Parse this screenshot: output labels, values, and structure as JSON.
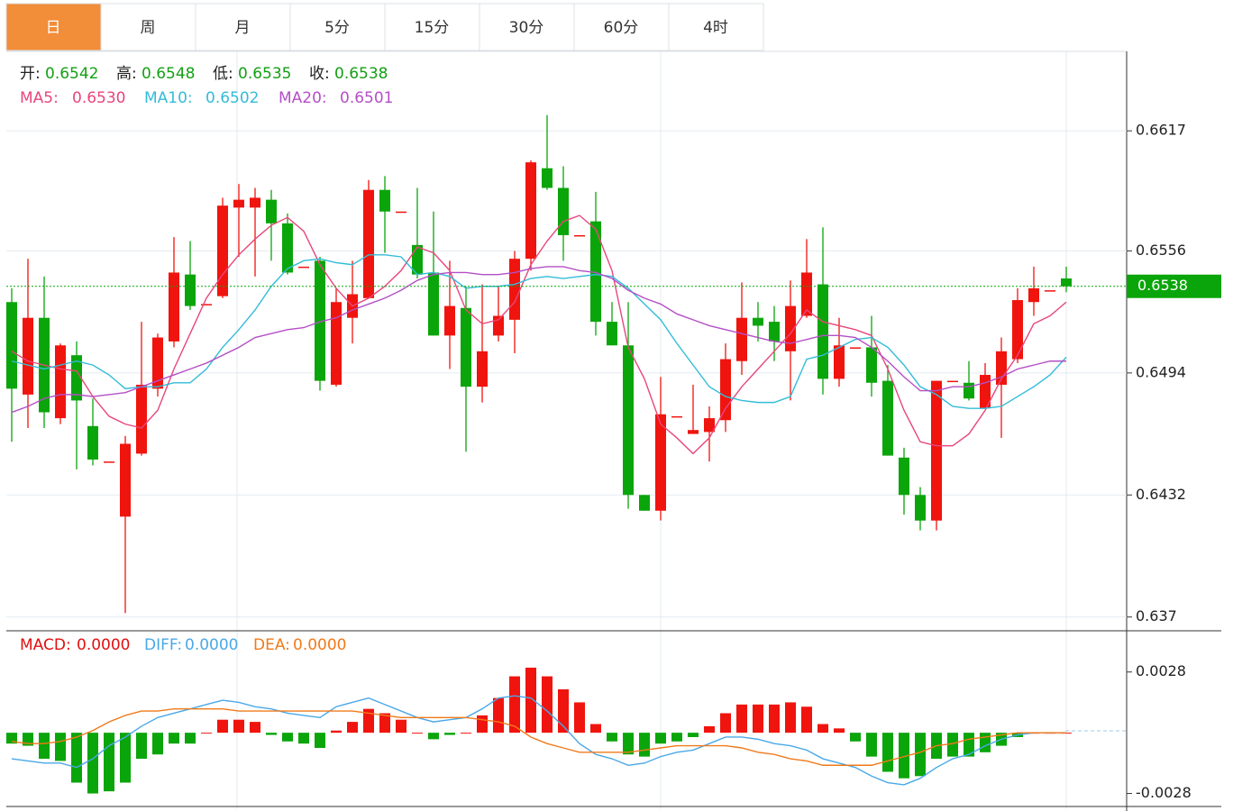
{
  "tabs": [
    "日",
    "周",
    "月",
    "5分",
    "15分",
    "30分",
    "60分",
    "4时"
  ],
  "active_tab": 0,
  "chart_data": [
    {
      "type": "candlestick",
      "legend": [
        {
          "label": "开:",
          "value": "0.6542"
        },
        {
          "label": "高:",
          "value": "0.6548"
        },
        {
          "label": "低:",
          "value": "0.6535"
        },
        {
          "label": "收:",
          "value": "0.6538"
        }
      ],
      "up_color": "#f0140e",
      "down_color": "#0aa50a",
      "open": [
        0.653,
        0.6483,
        0.6522,
        0.6471,
        0.6503,
        0.6467,
        0.6449,
        0.6421,
        0.6453,
        0.6486,
        0.651,
        0.6544,
        0.6529,
        0.6533,
        0.6578,
        0.6578,
        0.6582,
        0.657,
        0.6548,
        0.6551,
        0.6488,
        0.6522,
        0.6532,
        0.6587,
        0.6576,
        0.6559,
        0.6545,
        0.6513,
        0.6527,
        0.6487,
        0.6513,
        0.6521,
        0.6552,
        0.6598,
        0.6588,
        0.6564,
        0.6571,
        0.652,
        0.6508,
        0.6432,
        0.6424,
        0.6472,
        0.6463,
        0.6464,
        0.647,
        0.65,
        0.6522,
        0.652,
        0.6505,
        0.6523,
        0.6539,
        0.6491,
        0.6507,
        0.6507,
        0.649,
        0.6451,
        0.6432,
        0.6419,
        0.649,
        0.6489,
        0.6476,
        0.6488,
        0.6501,
        0.653,
        0.6536,
        0.6542
      ],
      "high": [
        0.6537,
        0.6552,
        0.6543,
        0.6509,
        0.651,
        0.6481,
        0.6449,
        0.6462,
        0.652,
        0.6514,
        0.6563,
        0.6561,
        0.6529,
        0.6583,
        0.659,
        0.6588,
        0.6587,
        0.6575,
        0.6548,
        0.6553,
        0.6537,
        0.6551,
        0.6592,
        0.6594,
        0.6576,
        0.6588,
        0.6576,
        0.6551,
        0.6538,
        0.6539,
        0.6538,
        0.6556,
        0.6602,
        0.6625,
        0.6599,
        0.6564,
        0.6586,
        0.653,
        0.653,
        0.6432,
        0.6492,
        0.6472,
        0.6488,
        0.6477,
        0.6509,
        0.654,
        0.653,
        0.6528,
        0.6541,
        0.6562,
        0.6568,
        0.6522,
        0.6507,
        0.6523,
        0.6498,
        0.6456,
        0.6436,
        0.649,
        0.649,
        0.65,
        0.6499,
        0.6512,
        0.6537,
        0.6548,
        0.6536,
        0.6548
      ],
      "low": [
        0.6459,
        0.6466,
        0.6466,
        0.6468,
        0.6445,
        0.6447,
        0.6449,
        0.6372,
        0.6452,
        0.6482,
        0.6507,
        0.6526,
        0.6529,
        0.6532,
        0.6553,
        0.6543,
        0.6551,
        0.6544,
        0.6548,
        0.6485,
        0.6487,
        0.6509,
        0.6532,
        0.6555,
        0.6576,
        0.6542,
        0.6513,
        0.6496,
        0.6454,
        0.6479,
        0.651,
        0.6504,
        0.6546,
        0.6587,
        0.6551,
        0.6564,
        0.6513,
        0.6508,
        0.6425,
        0.6424,
        0.6419,
        0.6472,
        0.6463,
        0.6449,
        0.6464,
        0.6493,
        0.651,
        0.65,
        0.648,
        0.6522,
        0.6483,
        0.6487,
        0.6507,
        0.6482,
        0.6452,
        0.6422,
        0.6414,
        0.6414,
        0.649,
        0.648,
        0.6476,
        0.6461,
        0.6499,
        0.6523,
        0.6536,
        0.6535
      ],
      "close": [
        0.6486,
        0.6522,
        0.6474,
        0.6508,
        0.648,
        0.645,
        0.6449,
        0.6458,
        0.6488,
        0.6512,
        0.6545,
        0.6528,
        0.6529,
        0.6579,
        0.6582,
        0.6583,
        0.657,
        0.6545,
        0.6548,
        0.649,
        0.653,
        0.6534,
        0.6587,
        0.6576,
        0.6576,
        0.6544,
        0.6513,
        0.6528,
        0.6487,
        0.6505,
        0.6523,
        0.6552,
        0.6601,
        0.6588,
        0.6564,
        0.6564,
        0.652,
        0.6508,
        0.6432,
        0.6424,
        0.6473,
        0.6472,
        0.6465,
        0.6471,
        0.6501,
        0.6522,
        0.6518,
        0.651,
        0.6528,
        0.6545,
        0.6491,
        0.6508,
        0.6507,
        0.6489,
        0.6452,
        0.6432,
        0.6419,
        0.649,
        0.649,
        0.6481,
        0.6493,
        0.6505,
        0.6531,
        0.6537,
        0.6536,
        0.6538
      ],
      "series": [
        {
          "name": "MA5:",
          "current": "0.6530",
          "color": "#e8467c",
          "values": [
            0.6505,
            0.65,
            0.6498,
            0.6496,
            0.6495,
            0.6482,
            0.6472,
            0.6468,
            0.6466,
            0.6475,
            0.6496,
            0.6514,
            0.6532,
            0.6544,
            0.6554,
            0.6562,
            0.6569,
            0.6573,
            0.6566,
            0.6549,
            0.6537,
            0.6528,
            0.6532,
            0.6538,
            0.6546,
            0.6558,
            0.6555,
            0.6546,
            0.6526,
            0.6519,
            0.6521,
            0.653,
            0.6549,
            0.6561,
            0.6571,
            0.6574,
            0.6567,
            0.6546,
            0.6507,
            0.6491,
            0.6468,
            0.6461,
            0.6453,
            0.6461,
            0.6476,
            0.6487,
            0.6496,
            0.6505,
            0.6514,
            0.6526,
            0.652,
            0.6518,
            0.6516,
            0.6513,
            0.6496,
            0.6475,
            0.6459,
            0.6457,
            0.6457,
            0.6463,
            0.6475,
            0.6491,
            0.6503,
            0.6519,
            0.6523,
            0.653
          ]
        },
        {
          "name": "MA10:",
          "current": "0.6502",
          "color": "#33bcd8",
          "values": [
            0.65,
            0.6498,
            0.6496,
            0.6498,
            0.65,
            0.6498,
            0.6493,
            0.6486,
            0.6487,
            0.6487,
            0.6489,
            0.6489,
            0.6496,
            0.6507,
            0.6516,
            0.6526,
            0.6538,
            0.6547,
            0.6551,
            0.6552,
            0.655,
            0.6549,
            0.6554,
            0.6554,
            0.6553,
            0.6544,
            0.6545,
            0.6543,
            0.6537,
            0.6538,
            0.6538,
            0.6539,
            0.6542,
            0.6543,
            0.6542,
            0.6543,
            0.6544,
            0.6543,
            0.6537,
            0.6529,
            0.6521,
            0.6509,
            0.6498,
            0.6487,
            0.6482,
            0.648,
            0.6479,
            0.6479,
            0.6482,
            0.6501,
            0.6503,
            0.6507,
            0.6511,
            0.6512,
            0.6507,
            0.6498,
            0.6487,
            0.6483,
            0.6477,
            0.6476,
            0.6476,
            0.6477,
            0.6482,
            0.6487,
            0.6493,
            0.6502
          ]
        },
        {
          "name": "MA20:",
          "current": "0.6501",
          "color": "#b44fc6",
          "values": [
            0.6474,
            0.6477,
            0.6481,
            0.6483,
            0.6483,
            0.6482,
            0.6483,
            0.6484,
            0.6487,
            0.649,
            0.6493,
            0.6496,
            0.6499,
            0.6503,
            0.6507,
            0.6512,
            0.6514,
            0.6516,
            0.6517,
            0.652,
            0.6522,
            0.6526,
            0.6529,
            0.6532,
            0.6536,
            0.6541,
            0.6544,
            0.6545,
            0.6545,
            0.6544,
            0.6544,
            0.6545,
            0.6547,
            0.6548,
            0.6548,
            0.6546,
            0.6545,
            0.6542,
            0.6536,
            0.6532,
            0.6529,
            0.6524,
            0.6521,
            0.6518,
            0.6516,
            0.6514,
            0.6512,
            0.651,
            0.6509,
            0.6511,
            0.6513,
            0.6513,
            0.6512,
            0.6507,
            0.65,
            0.6492,
            0.6485,
            0.6485,
            0.6487,
            0.6487,
            0.6489,
            0.6492,
            0.6496,
            0.6498,
            0.65,
            0.65
          ]
        }
      ],
      "last_price": 0.6538,
      "ylim": [
        0.6363,
        0.6656
      ],
      "yticks": [
        0.6617,
        0.6556,
        0.6494,
        0.6432,
        0.637
      ],
      "grid": true
    },
    {
      "type": "macd",
      "legend": [
        {
          "label": "MACD:",
          "value": "0.0000",
          "color": "#e01010"
        },
        {
          "label": "DIFF:",
          "value": "0.0000",
          "color": "#4aa8e8"
        },
        {
          "label": "DEA:",
          "value": "0.0000",
          "color": "#f07a1a"
        }
      ],
      "histogram": [
        -0.0005,
        -0.0006,
        -0.0012,
        -0.0013,
        -0.0023,
        -0.0028,
        -0.0027,
        -0.0023,
        -0.0012,
        -0.001,
        -0.0005,
        -0.0005,
        0,
        0.0006,
        0.0006,
        0.0005,
        -0.0001,
        -0.0004,
        -0.0005,
        -0.0007,
        0.0001,
        0.0005,
        0.0011,
        0.0009,
        0.0006,
        0,
        -0.0003,
        -0.0001,
        0,
        0.0008,
        0.0016,
        0.0026,
        0.003,
        0.0026,
        0.002,
        0.0014,
        0.0004,
        -0.0004,
        -0.001,
        -0.0011,
        -0.0005,
        -0.0004,
        -0.0002,
        0.0003,
        0.0009,
        0.0013,
        0.0013,
        0.0013,
        0.0014,
        0.0012,
        0.0004,
        0.0002,
        -0.0004,
        -0.0011,
        -0.0018,
        -0.0021,
        -0.002,
        -0.0012,
        -0.0011,
        -0.0011,
        -0.0009,
        -0.0006,
        -0.0002,
        0,
        0,
        0
      ],
      "up_color": "#f0140e",
      "down_color": "#0aa50a",
      "series": [
        {
          "name": "DIFF",
          "color": "#4aa8e8",
          "values": [
            -0.0012,
            -0.0013,
            -0.0014,
            -0.0014,
            -0.0016,
            -0.0012,
            -0.0006,
            -0.0002,
            0.0003,
            0.0007,
            0.0009,
            0.0011,
            0.0013,
            0.0015,
            0.0014,
            0.0012,
            0.0011,
            0.0009,
            0.0008,
            0.0007,
            0.0012,
            0.0014,
            0.0016,
            0.0013,
            0.001,
            0.0007,
            0.0005,
            0.0006,
            0.0007,
            0.0011,
            0.0016,
            0.0017,
            0.0016,
            0.001,
            0.0003,
            -0.0005,
            -0.001,
            -0.0012,
            -0.0015,
            -0.0014,
            -0.0011,
            -0.0009,
            -0.0008,
            -0.0005,
            -0.0002,
            -0.0002,
            -0.0003,
            -0.0005,
            -0.0006,
            -0.0008,
            -0.0012,
            -0.0014,
            -0.0016,
            -0.002,
            -0.0023,
            -0.0024,
            -0.0021,
            -0.0016,
            -0.0012,
            -0.001,
            -0.0006,
            -0.0003,
            -0.0001,
            0,
            0,
            0
          ]
        },
        {
          "name": "DEA",
          "color": "#f07a1a",
          "values": [
            -0.0004,
            -0.0005,
            -0.0005,
            -0.0004,
            -0.0002,
            0.0001,
            0.0005,
            0.0008,
            0.001,
            0.001,
            0.0011,
            0.0011,
            0.0011,
            0.0011,
            0.001,
            0.001,
            0.001,
            0.001,
            0.001,
            0.001,
            0.001,
            0.001,
            0.0009,
            0.0008,
            0.0007,
            0.0007,
            0.0007,
            0.0007,
            0.0007,
            0.0006,
            0.0005,
            0.0003,
            -0.0002,
            -0.0005,
            -0.0007,
            -0.0009,
            -0.0009,
            -0.0009,
            -0.0009,
            -0.0008,
            -0.0007,
            -0.0006,
            -0.0006,
            -0.0006,
            -0.0006,
            -0.0007,
            -0.0009,
            -0.001,
            -0.0012,
            -0.0013,
            -0.0015,
            -0.0015,
            -0.0015,
            -0.0015,
            -0.0013,
            -0.0011,
            -0.0009,
            -0.0006,
            -0.0005,
            -0.0003,
            -0.0002,
            -0.0001,
            0,
            0,
            0,
            0
          ]
        }
      ],
      "ylim": [
        -0.0034,
        0.0047
      ],
      "yticks": [
        0.0028,
        -0.0028
      ]
    }
  ]
}
